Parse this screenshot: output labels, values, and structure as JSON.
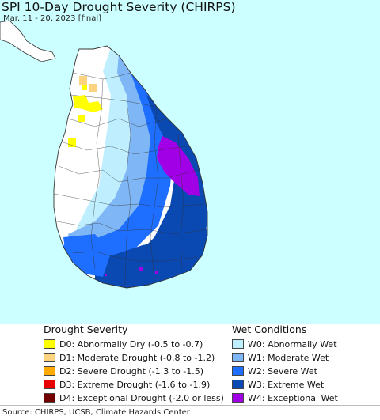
{
  "title": "SPI 10-Day Drought Severity (CHIRPS)",
  "subtitle": "Mar. 11 - 20, 2023 [final]",
  "drought": {
    "heading": "Drought Severity",
    "items": [
      {
        "label": "D0: Abnormally Dry (-0.5 to -0.7)",
        "color": "#ffff00"
      },
      {
        "label": "D1: Moderate Drought (-0.8 to -1.2)",
        "color": "#fcd37f"
      },
      {
        "label": "D2: Severe Drought (-1.3 to -1.5)",
        "color": "#ffaa00"
      },
      {
        "label": "D3: Extreme Drought (-1.6 to -1.9)",
        "color": "#e60000"
      },
      {
        "label": "D4: Exceptional Drought (-2.0 or less)",
        "color": "#730000"
      }
    ]
  },
  "wet": {
    "heading": "Wet Conditions",
    "items": [
      {
        "label": "W0: Abnormally Wet",
        "color": "#bfefff"
      },
      {
        "label": "W1: Moderate Wet",
        "color": "#7fb6f5"
      },
      {
        "label": "W2: Severe Wet",
        "color": "#1e6fff"
      },
      {
        "label": "W3: Extreme Wet",
        "color": "#0a48b2"
      },
      {
        "label": "W4: Exceptional Wet",
        "color": "#a100e6"
      }
    ]
  },
  "source": "Source: CHIRPS, UCSB, Climate Hazards Center",
  "colors": {
    "ocean": "#ccffff",
    "land_normal": "#ffffff",
    "border": "#333333"
  }
}
